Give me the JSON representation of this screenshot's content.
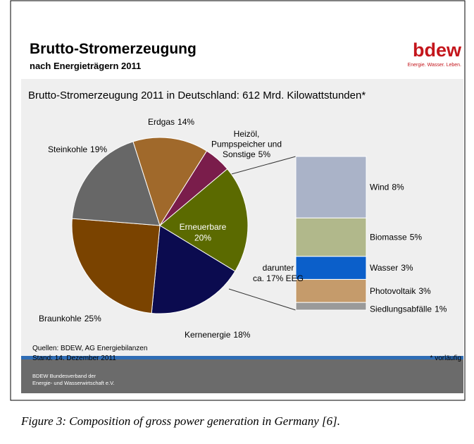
{
  "header": {
    "title": "Brutto-Stromerzeugung",
    "subtitle": "nach Energieträgern 2011",
    "logo": "bdew",
    "tagline": "Energie. Wasser. Leben."
  },
  "chart_data": [
    {
      "type": "pie",
      "title": "Brutto-Stromerzeugung 2011 in Deutschland: 612 Mrd. Kilowattstunden*",
      "categories": [
        "Erneuerbare",
        "Kernenergie",
        "Braunkohle",
        "Steinkohle",
        "Erdgas",
        "Heizöl,\nPumpspeicher und\nSonstige"
      ],
      "values": [
        20,
        18,
        25,
        19,
        14,
        5
      ],
      "value_labels": [
        "20%",
        "18%",
        "25%",
        "19%",
        "14%",
        "5%"
      ],
      "colors": [
        "#5b6a00",
        "#0b0b4f",
        "#7a4300",
        "#676767",
        "#a0692b",
        "#7a1d4b"
      ]
    },
    {
      "type": "stacked_bar",
      "annotation": "darunter\nca. 17% EEG",
      "categories": [
        "Siedlungsabfälle",
        "Photovoltaik",
        "Wasser",
        "Biomasse",
        "Wind"
      ],
      "values": [
        1,
        3,
        3,
        5,
        8
      ],
      "value_labels": [
        "1%",
        "3%",
        "3%",
        "5%",
        "8%"
      ],
      "colors": [
        "#9a9a9a",
        "#c59b6b",
        "#0b5fca",
        "#b1b88b",
        "#aab3c8"
      ]
    }
  ],
  "source": [
    "Quellen: BDEW,  AG Energiebilanzen",
    "Stand: 14. Dezember 2011"
  ],
  "note": "* vorläufig",
  "footer": [
    "BDEW Bundesverband der",
    "Energie- und Wasserwirtschaft e.V."
  ],
  "caption": "Figure 3: Composition of gross power generation in Germany [6]."
}
